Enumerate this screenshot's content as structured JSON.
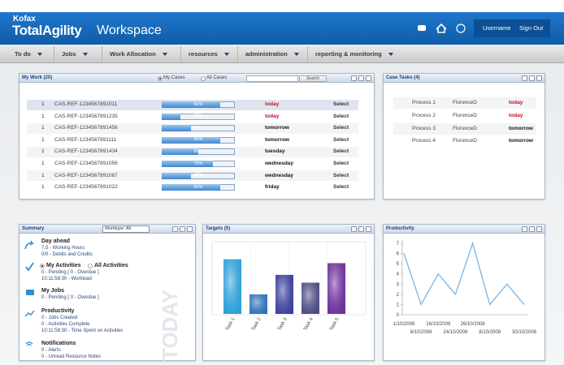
{
  "header": {
    "brand": "Kofax",
    "product": "TotalAgility",
    "app": "Workspace",
    "username": "Username",
    "sign_out": "Sign Out"
  },
  "nav": [
    "To do",
    "Jobs",
    "Work Allocation",
    "resources",
    "administration",
    "reporting & monitoring"
  ],
  "my_work": {
    "title": "My Work (20)",
    "filters": [
      "My Cases",
      "All Cases"
    ],
    "search": "Search",
    "rows": [
      {
        "status_color": "#d9101c",
        "priority": "1",
        "case": "CAS-REF-1234567891011",
        "progress": 80,
        "progress_label": "80%",
        "due": "today",
        "due_color": "#c0102a",
        "action": "Select"
      },
      {
        "status_color": "#d9101c",
        "priority": "1",
        "case": "CAS-REF-1234567891235",
        "progress": 25,
        "progress_label": "25%",
        "due": "today",
        "due_color": "#c0102a",
        "action": "Select"
      },
      {
        "status_color": "#d9101c",
        "priority": "1",
        "case": "CAS-REF-1234567891456",
        "progress": 40,
        "progress_label": "40%",
        "due": "tomorrow",
        "due_color": "#111111",
        "action": "Select"
      },
      {
        "status_color": "#f39a1e",
        "priority": "1",
        "case": "CAS-REF-1234567891111",
        "progress": 80,
        "progress_label": "80%",
        "due": "tomorrow",
        "due_color": "#111111",
        "action": "Select"
      },
      {
        "status_color": "#f39a1e",
        "priority": "1",
        "case": "CAS-REF-1234567891434",
        "progress": 50,
        "progress_label": "50%",
        "due": "tuesday",
        "due_color": "#111111",
        "action": "Select"
      },
      {
        "status_color": "#1d6b1d",
        "priority": "1",
        "case": "CAS-REF-1234567891056",
        "progress": 70,
        "progress_label": "70%",
        "due": "wednesday",
        "due_color": "#111111",
        "action": "Select"
      },
      {
        "status_color": "#1d6b1d",
        "priority": "1",
        "case": "CAS-REF-1234567891087",
        "progress": 40,
        "progress_label": "40%",
        "due": "wednesday",
        "due_color": "#111111",
        "action": "Select"
      },
      {
        "status_color": "#1d6b1d",
        "priority": "1",
        "case": "CAS-REF-1234567891022",
        "progress": 80,
        "progress_label": "80%",
        "due": "friday",
        "due_color": "#111111",
        "action": "Select"
      }
    ]
  },
  "case_tasks": {
    "title": "Case Tasks (4)",
    "rows": [
      {
        "status_color": "#d9101c",
        "process": "Process 1",
        "user": "FlorenceD",
        "due": "today",
        "due_color": "#c0102a"
      },
      {
        "status_color": "#d9101c",
        "process": "Process 2",
        "user": "FlorenceD",
        "due": "today",
        "due_color": "#c0102a"
      },
      {
        "status_color": "#d9101c",
        "process": "Process 3",
        "user": "FlorenceD",
        "due": "tomorrow",
        "due_color": "#111111"
      },
      {
        "status_color": "#f39a1e",
        "process": "Process 4",
        "user": "FlorenceD",
        "due": "tomorrow",
        "due_color": "#111111"
      }
    ]
  },
  "summary": {
    "title": "Summary",
    "worktype": "Worktype: All",
    "watermark": "TODAY",
    "sections": [
      {
        "heading": "Day ahead",
        "lines": [
          "7.5 - Working Hours",
          "0/0 - Debits and Credits"
        ]
      },
      {
        "options": [
          "My Activities",
          "All Activities"
        ],
        "lines": [
          "0 - Pending [ 0 - Overdue ]",
          "10:11:58:30 - Workload"
        ]
      },
      {
        "heading": "My Jobs",
        "lines": [
          "0 - Pending [ 0 - Overdue ]"
        ]
      },
      {
        "heading": "Productivity",
        "lines": [
          "0 - Jobs Created",
          "0 - Activities Complete",
          "10:11:58:30 - Time Spent on Activities"
        ]
      },
      {
        "heading": "Notifications",
        "lines": [
          "0 - Alerts",
          "0 - Unread Resource Notes"
        ]
      }
    ]
  },
  "chart_data": [
    {
      "type": "bar",
      "title": "Targets (5)",
      "categories": [
        "Task 1",
        "Task 2",
        "Task 3",
        "Task 4",
        "Task 5"
      ],
      "values": [
        7,
        2.5,
        5,
        4,
        6.5
      ],
      "colors": [
        "#2a9fd8",
        "#2f6fba",
        "#3a3f9c",
        "#4b4b82",
        "#6b2f9c"
      ],
      "ylim": [
        0,
        8
      ]
    },
    {
      "type": "line",
      "title": "Productivity",
      "categories": [
        "1/10/2008",
        "8/10/2008",
        "16/10/2008",
        "24/10/2008",
        "26/10/2008",
        "8/10/2008",
        null,
        "30/10/2008"
      ],
      "values": [
        6,
        1,
        4,
        2,
        7,
        1,
        3,
        1
      ],
      "color": "#7fb8e6",
      "ylim": [
        0,
        7
      ],
      "yticks": [
        0,
        1,
        2,
        3,
        4,
        5,
        6,
        7
      ]
    }
  ]
}
